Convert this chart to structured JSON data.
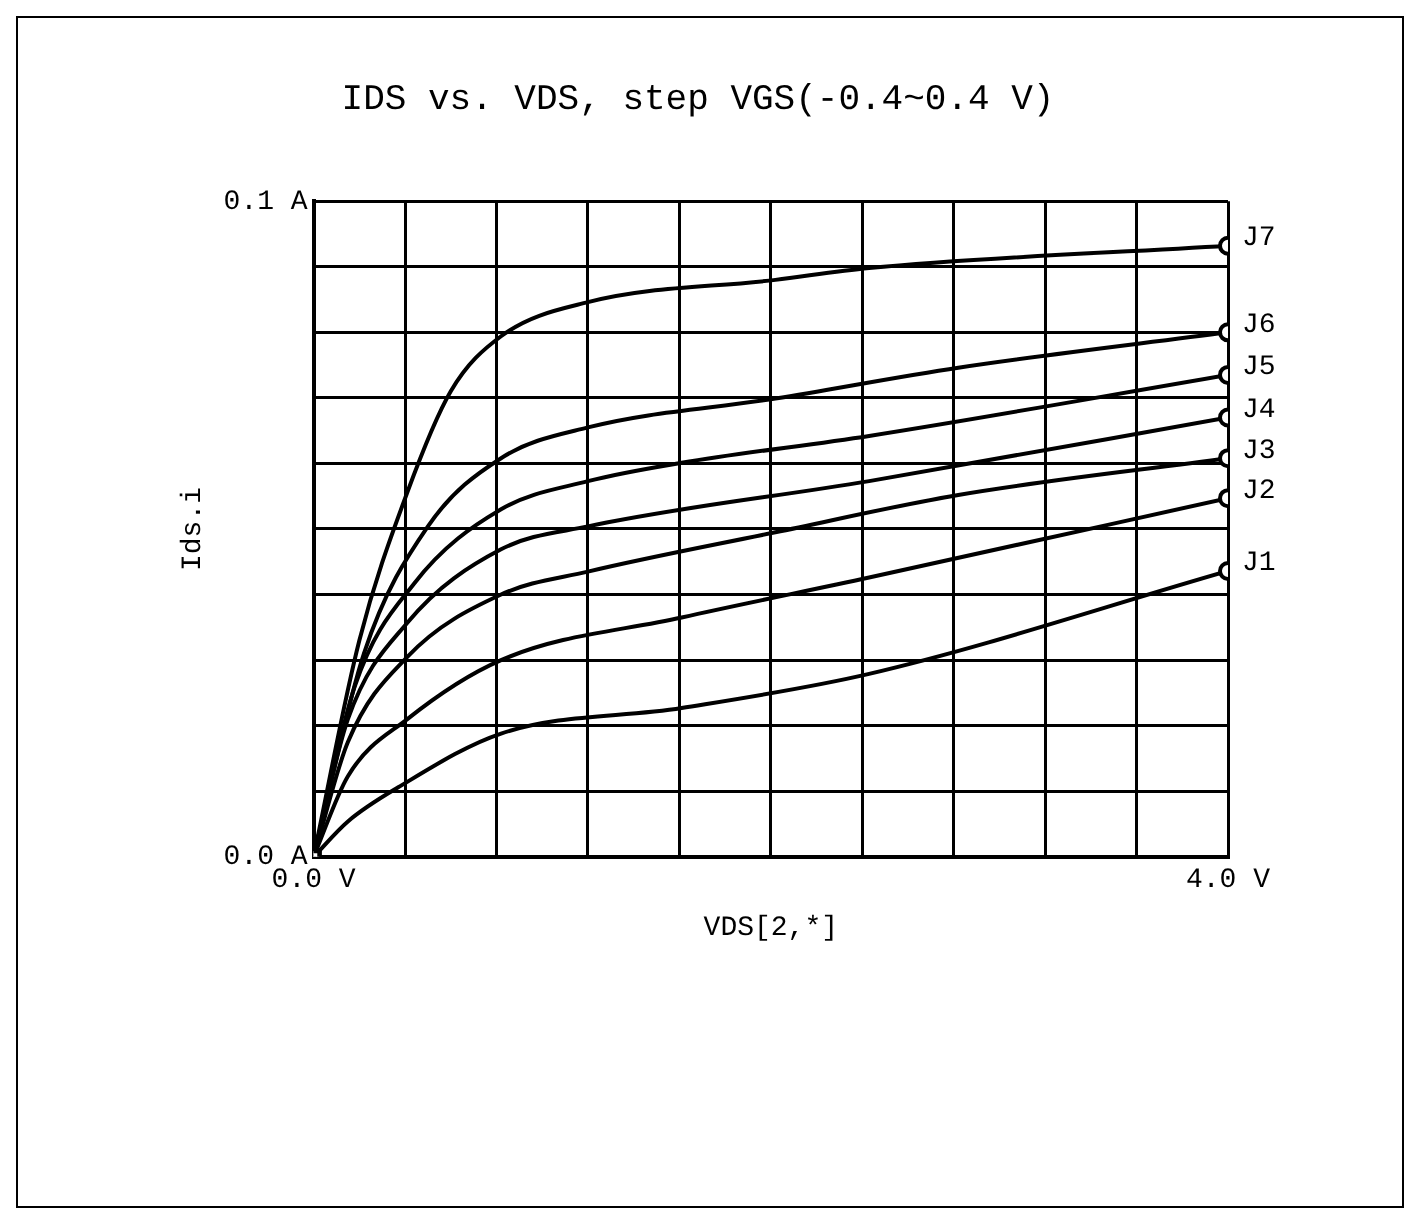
{
  "chart_data": {
    "type": "line",
    "title": "IDS vs. VDS, step VGS(-0.4~0.4 V)",
    "xlabel": "VDS[2,*]",
    "ylabel": "Ids.i",
    "xlim": [
      0,
      4
    ],
    "ylim": [
      0,
      0.1
    ],
    "xticks": [
      {
        "value": 0,
        "label": "0.0 V"
      },
      {
        "value": 0.4,
        "label": null
      },
      {
        "value": 0.8,
        "label": null
      },
      {
        "value": 1.2,
        "label": null
      },
      {
        "value": 1.6,
        "label": null
      },
      {
        "value": 2.0,
        "label": null
      },
      {
        "value": 2.4,
        "label": null
      },
      {
        "value": 2.8,
        "label": null
      },
      {
        "value": 3.2,
        "label": null
      },
      {
        "value": 3.6,
        "label": null
      },
      {
        "value": 4,
        "label": "4.0 V"
      }
    ],
    "yticks": [
      {
        "value": 0,
        "label": "0.0 A"
      },
      {
        "value": 0.01,
        "label": null
      },
      {
        "value": 0.02,
        "label": null
      },
      {
        "value": 0.03,
        "label": null
      },
      {
        "value": 0.04,
        "label": null
      },
      {
        "value": 0.05,
        "label": null
      },
      {
        "value": 0.06,
        "label": null
      },
      {
        "value": 0.07,
        "label": null
      },
      {
        "value": 0.08,
        "label": null
      },
      {
        "value": 0.09,
        "label": null
      },
      {
        "value": 0.1,
        "label": "0.1 A"
      }
    ],
    "grid": true,
    "legend": false,
    "line_style": "solid",
    "series": [
      {
        "name": "J1",
        "color": "#000000",
        "x": [
          0,
          0.15,
          0.37,
          0.82,
          1.61,
          2.43,
          4.0
        ],
        "values": [
          0,
          0.0054,
          0.0106,
          0.0188,
          0.0227,
          0.0279,
          0.0436
        ]
      },
      {
        "name": "J2",
        "color": "#000000",
        "x": [
          0,
          0.15,
          0.41,
          0.82,
          1.61,
          2.43,
          4.0
        ],
        "values": [
          0,
          0.0123,
          0.021,
          0.03,
          0.0365,
          0.0426,
          0.0547
        ]
      },
      {
        "name": "J3",
        "color": "#000000",
        "x": [
          0,
          0.15,
          0.41,
          0.82,
          1.2,
          2.02,
          2.82,
          4.0
        ],
        "values": [
          0,
          0.0175,
          0.0305,
          0.04,
          0.0435,
          0.0495,
          0.0552,
          0.0608
        ]
      },
      {
        "name": "J4",
        "color": "#000000",
        "x": [
          0,
          0.15,
          0.41,
          0.82,
          1.2,
          2.43,
          4.0
        ],
        "values": [
          0,
          0.021,
          0.0357,
          0.0469,
          0.0504,
          0.0573,
          0.067
        ]
      },
      {
        "name": "J5",
        "color": "#000000",
        "x": [
          0,
          0.18,
          0.44,
          0.82,
          1.2,
          1.61,
          2.43,
          4.0
        ],
        "values": [
          0,
          0.026,
          0.0417,
          0.053,
          0.0573,
          0.0601,
          0.0642,
          0.0735
        ]
      },
      {
        "name": "J6",
        "color": "#000000",
        "x": [
          0,
          0.22,
          0.5,
          0.82,
          1.2,
          2.02,
          2.82,
          4.0
        ],
        "values": [
          0,
          0.031,
          0.0504,
          0.0608,
          0.0655,
          0.0699,
          0.0746,
          0.08
        ]
      },
      {
        "name": "J7",
        "color": "#000000",
        "x": [
          0,
          0.2,
          0.41,
          0.6,
          0.82,
          1.2,
          2.02,
          2.43,
          4.0
        ],
        "values": [
          0,
          0.033,
          0.0556,
          0.071,
          0.0794,
          0.0846,
          0.088,
          0.0898,
          0.0932
        ]
      }
    ]
  }
}
